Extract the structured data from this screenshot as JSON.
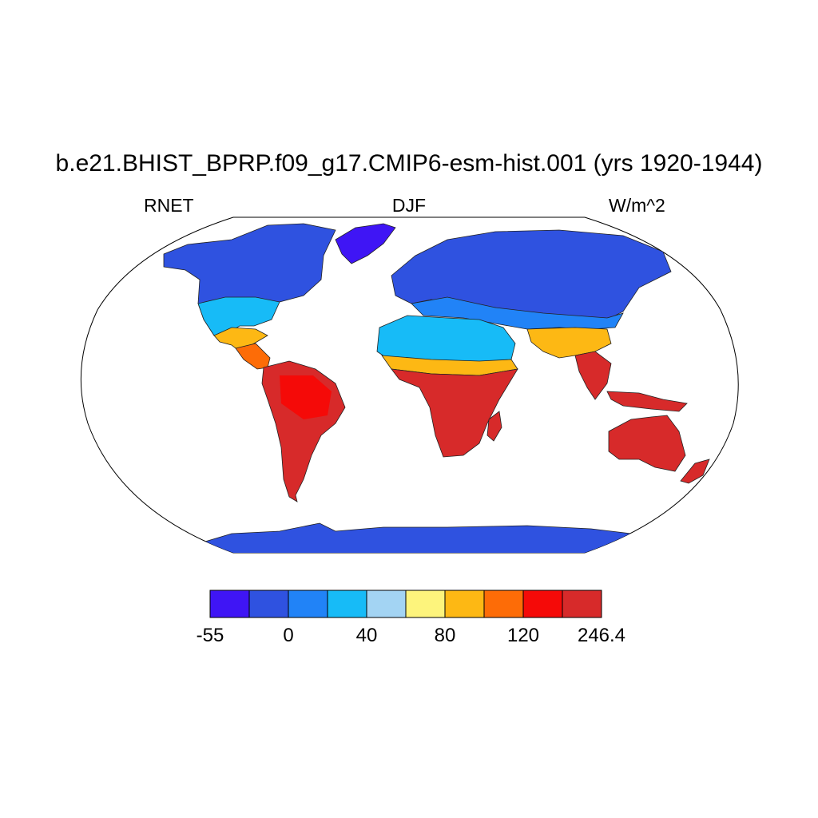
{
  "title": "b.e21.BHIST_BPRP.f09_g17.CMIP6-esm-hist.001 (yrs 1920-1944)",
  "subtitle": {
    "left": "RNET",
    "center": "DJF",
    "right": "W/m^2"
  },
  "map": {
    "projection": "robinson",
    "coverage": "land-only",
    "background": "#ffffff"
  },
  "colorbar": {
    "colors": [
      "#3f15f5",
      "#2f52e0",
      "#2183f7",
      "#17bbf7",
      "#a3d4f3",
      "#fdf47c",
      "#fdb814",
      "#fd6c07",
      "#f50a08",
      "#d72a2a"
    ],
    "tick_labels": [
      "-55",
      "0",
      "40",
      "80",
      "120",
      "246.4"
    ]
  }
}
